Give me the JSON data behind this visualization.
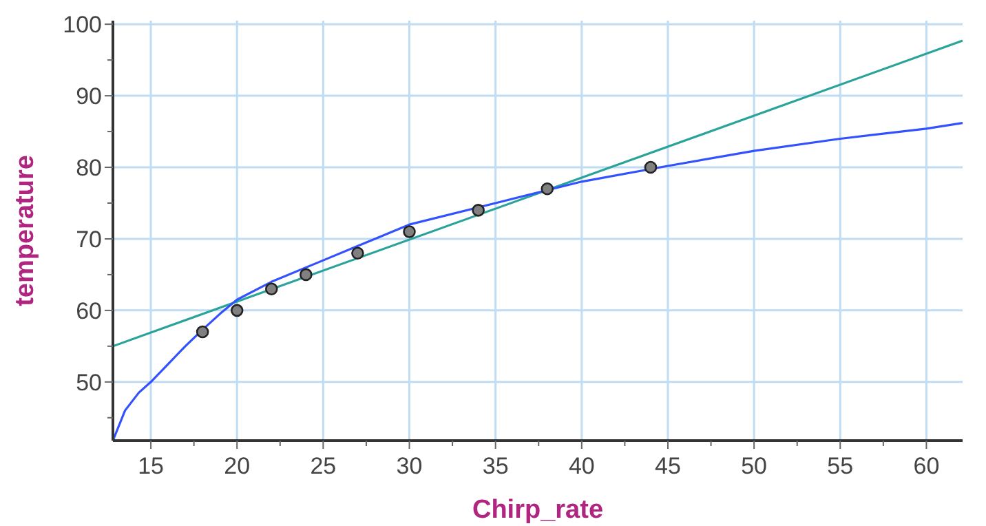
{
  "chart_data": {
    "type": "scatter",
    "xlabel": "Chirp_rate",
    "ylabel": "temperature",
    "xlim": [
      12.8,
      62.1
    ],
    "ylim": [
      41.8,
      100.5
    ],
    "xticks": [
      15,
      {
        "value": 17.5,
        "label": null
      },
      20,
      {
        "value": 22.5,
        "label": null
      },
      25,
      {
        "value": 27.5,
        "label": null
      },
      30,
      {
        "value": 32.5,
        "label": null
      },
      35,
      {
        "value": 37.5,
        "label": null
      },
      40,
      {
        "value": 42.5,
        "label": null
      },
      45,
      {
        "value": 47.5,
        "label": null
      },
      50,
      {
        "value": 52.5,
        "label": null
      },
      55,
      {
        "value": 57.5,
        "label": null
      },
      60
    ],
    "yticks": [
      {
        "value": 45,
        "label": null
      },
      50,
      {
        "value": 55,
        "label": null
      },
      60,
      {
        "value": 65,
        "label": null
      },
      70,
      {
        "value": 75,
        "label": null
      },
      80,
      {
        "value": 85,
        "label": null
      },
      90,
      {
        "value": 95,
        "label": null
      },
      100
    ],
    "grid": true,
    "series": [
      {
        "type": "line",
        "color": "#2aa39a",
        "x": [
          12.8,
          62.1
        ],
        "values": [
          55,
          97.7
        ]
      },
      {
        "type": "line",
        "color": "#3352ff",
        "x": [
          12.8,
          13.5,
          14.3,
          15,
          16,
          17,
          18,
          19,
          20,
          22,
          25,
          28,
          30,
          35,
          40,
          45,
          50,
          55,
          60,
          62.1
        ],
        "values": [
          41.8,
          46,
          48.5,
          50,
          52.5,
          55,
          57.3,
          59.5,
          61.5,
          64,
          67,
          70,
          72,
          75,
          78,
          80.2,
          82.3,
          84,
          85.4,
          86.2
        ]
      },
      {
        "marker": "circle",
        "color": "#808080",
        "x": [
          18,
          20,
          22,
          24,
          27,
          30,
          34,
          38,
          44
        ],
        "values": [
          57,
          60,
          63,
          65,
          68,
          71,
          74,
          77,
          80
        ]
      }
    ]
  }
}
